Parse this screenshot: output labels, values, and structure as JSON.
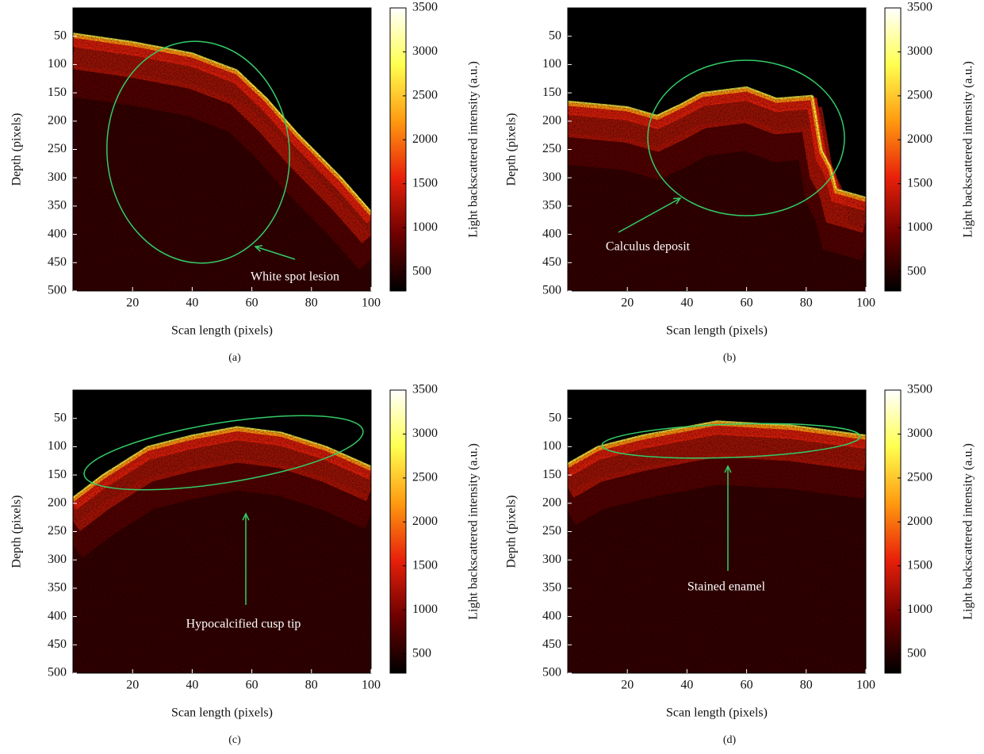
{
  "chart_data": [
    {
      "type": "heatmap",
      "caption": "(a)",
      "xlabel": "Scan length (pixels)",
      "ylabel": "Depth (pixels)",
      "colorbar_label": "Light backscattered intensity (a.u.)",
      "annotation": "White spot lesion",
      "xlim": [
        0,
        100
      ],
      "xticks": [
        20,
        40,
        60,
        80,
        100
      ],
      "ylim": [
        500,
        0
      ],
      "yticks": [
        50,
        100,
        150,
        200,
        250,
        300,
        350,
        400,
        450,
        500
      ],
      "clim": [
        280,
        3500
      ],
      "cticks": [
        500,
        1000,
        1500,
        2000,
        2500,
        3000,
        3500
      ],
      "colormap": [
        "#000000",
        "#6e0000",
        "#e8200a",
        "#ff9a10",
        "#ffff50",
        "#ffffff"
      ],
      "annotation_color": "#33cc66"
    },
    {
      "type": "heatmap",
      "caption": "(b)",
      "xlabel": "Scan length (pixels)",
      "ylabel": "Depth (pixels)",
      "colorbar_label": "Light backscattered intensity (a.u.)",
      "annotation": "Calculus deposit",
      "xlim": [
        0,
        100
      ],
      "xticks": [
        20,
        40,
        60,
        80,
        100
      ],
      "ylim": [
        500,
        0
      ],
      "yticks": [
        50,
        100,
        150,
        200,
        250,
        300,
        350,
        400,
        450,
        500
      ],
      "clim": [
        280,
        3500
      ],
      "cticks": [
        500,
        1000,
        1500,
        2000,
        2500,
        3000,
        3500
      ],
      "colormap": [
        "#000000",
        "#6e0000",
        "#e8200a",
        "#ff9a10",
        "#ffff50",
        "#ffffff"
      ],
      "annotation_color": "#33cc66"
    },
    {
      "type": "heatmap",
      "caption": "(c)",
      "xlabel": "Scan length (pixels)",
      "ylabel": "Depth (pixels)",
      "colorbar_label": "Light backscattered intensity (a.u.)",
      "annotation": "Hypocalcified cusp tip",
      "xlim": [
        0,
        100
      ],
      "xticks": [
        20,
        40,
        60,
        80,
        100
      ],
      "ylim": [
        500,
        0
      ],
      "yticks": [
        50,
        100,
        150,
        200,
        250,
        300,
        350,
        400,
        450,
        500
      ],
      "clim": [
        280,
        3500
      ],
      "cticks": [
        500,
        1000,
        1500,
        2000,
        2500,
        3000,
        3500
      ],
      "colormap": [
        "#000000",
        "#6e0000",
        "#e8200a",
        "#ff9a10",
        "#ffff50",
        "#ffffff"
      ],
      "annotation_color": "#33cc66"
    },
    {
      "type": "heatmap",
      "caption": "(d)",
      "xlabel": "Scan length (pixels)",
      "ylabel": "Depth (pixels)",
      "colorbar_label": "Light backscattered intensity (a.u.)",
      "annotation": "Stained enamel",
      "xlim": [
        0,
        100
      ],
      "xticks": [
        20,
        40,
        60,
        80,
        100
      ],
      "ylim": [
        500,
        0
      ],
      "yticks": [
        50,
        100,
        150,
        200,
        250,
        300,
        350,
        400,
        450,
        500
      ],
      "clim": [
        280,
        3500
      ],
      "cticks": [
        500,
        1000,
        1500,
        2000,
        2500,
        3000,
        3500
      ],
      "colormap": [
        "#000000",
        "#6e0000",
        "#e8200a",
        "#ff9a10",
        "#ffff50",
        "#ffffff"
      ],
      "annotation_color": "#33cc66"
    }
  ]
}
